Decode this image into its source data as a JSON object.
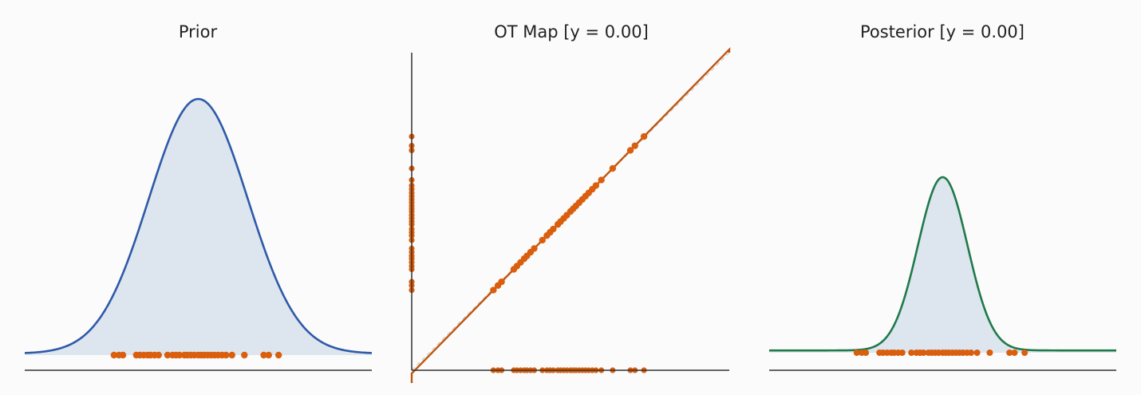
{
  "colors": {
    "background": "#fbfbfb",
    "axis": "#333333",
    "prior_line": "#2e5aa8",
    "fill": "#dde5ee",
    "samples": "#d95f0e",
    "map_line": "#c0560f",
    "identity": "#c8c8c8",
    "posterior_line": "#1f7a4a"
  },
  "chart_data": [
    {
      "type": "area",
      "title": "Prior",
      "xlabel": "",
      "ylabel": "",
      "grid": false,
      "curve": {
        "kind": "gaussian",
        "mean": 0.0,
        "sd": 1.0,
        "xlim": [
          -3.5,
          3.5
        ],
        "baseline_height": 0.006
      },
      "samples": [
        -1.7,
        -1.6,
        -1.52,
        -1.25,
        -1.18,
        -1.1,
        -1.02,
        -0.96,
        -0.88,
        -0.8,
        -0.62,
        -0.52,
        -0.45,
        -0.38,
        -0.28,
        -0.22,
        -0.15,
        -0.08,
        0.0,
        0.06,
        0.12,
        0.19,
        0.26,
        0.33,
        0.4,
        0.48,
        0.56,
        0.68,
        0.93,
        1.32,
        1.42,
        1.62
      ]
    },
    {
      "type": "line",
      "title": "OT Map  [y = 0.00]",
      "xlabel": "",
      "ylabel": "",
      "grid": false,
      "xlim": [
        -3.5,
        3.5
      ],
      "ylim": [
        -3.5,
        3.5
      ],
      "identity_line": true,
      "samples": [
        -1.7,
        -1.6,
        -1.52,
        -1.25,
        -1.18,
        -1.1,
        -1.02,
        -0.96,
        -0.88,
        -0.8,
        -0.62,
        -0.52,
        -0.45,
        -0.38,
        -0.28,
        -0.22,
        -0.15,
        -0.08,
        0.0,
        0.06,
        0.12,
        0.19,
        0.26,
        0.33,
        0.4,
        0.48,
        0.56,
        0.68,
        0.93,
        1.32,
        1.42,
        1.62
      ]
    },
    {
      "type": "area",
      "title": "Posterior  [y = 0.00]",
      "xlabel": "",
      "ylabel": "",
      "grid": false,
      "curve": {
        "kind": "gaussian",
        "mean": 0.0,
        "sd": 0.5,
        "xlim": [
          -3.5,
          3.5
        ],
        "baseline_height": 0.013
      },
      "samples_from_map": true
    }
  ]
}
